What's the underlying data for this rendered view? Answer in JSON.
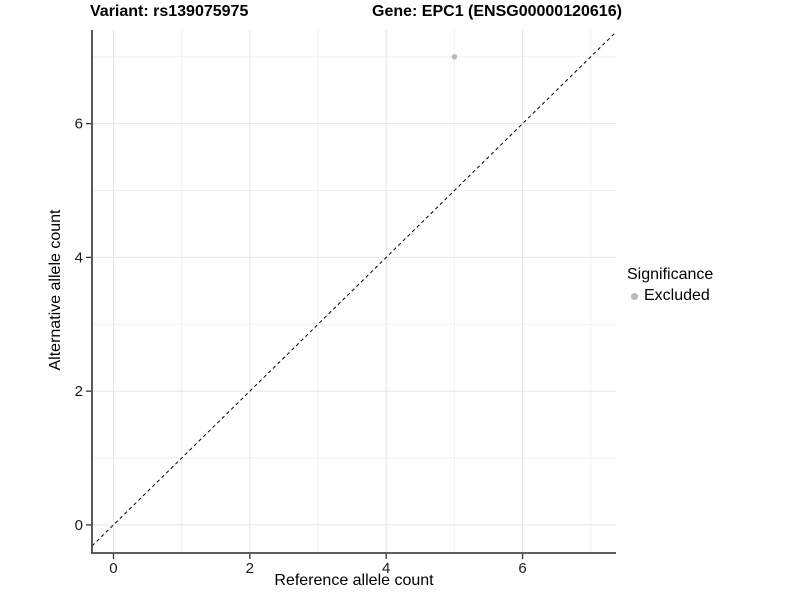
{
  "chart_data": {
    "type": "scatter",
    "title_left": "Variant: rs139075975",
    "title_right": "Gene: EPC1 (ENSG00000120616)",
    "xlabel": "Reference allele count",
    "ylabel": "Alternative allele count",
    "xlim": [
      -0.315,
      7.37
    ],
    "ylim": [
      -0.42,
      7.4
    ],
    "x_major_ticks": [
      0,
      2,
      4,
      6
    ],
    "y_major_ticks": [
      0,
      2,
      4,
      6
    ],
    "x_minor_ticks": [
      1,
      3,
      5,
      7
    ],
    "y_minor_ticks": [
      1,
      3,
      5,
      7
    ],
    "grid": true,
    "points": [
      {
        "x": 5,
        "y": 7,
        "series": "Excluded"
      }
    ],
    "identity_line": {
      "slope": 1,
      "intercept": 0,
      "style": "dashed",
      "color": "#000000"
    },
    "legend": {
      "title": "Significance",
      "position": "right",
      "items": [
        {
          "label": "Excluded",
          "color": "#b8b8b8"
        }
      ]
    },
    "colors": {
      "point": "#b8b8b8",
      "grid_major": "#e4e4e4",
      "grid_minor": "#f0f0f0",
      "axis_line": "#474747",
      "tick_mark": "#333333",
      "tick_label": "#1a1a1a"
    }
  }
}
